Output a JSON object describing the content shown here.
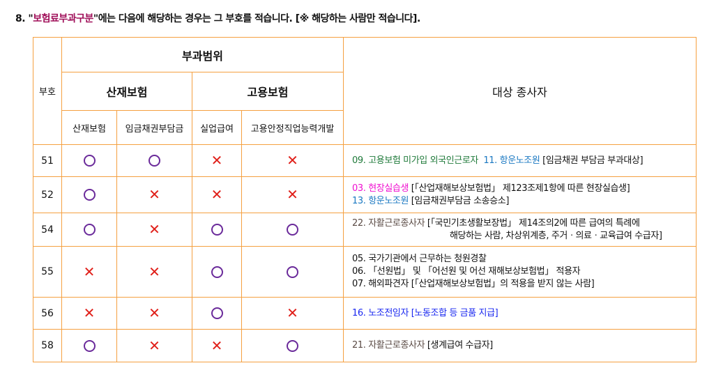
{
  "title": {
    "prefix": "8. \"",
    "highlight": "보험료부과구분",
    "suffix": "\"에는 다음에 해당하는 경우는 그 부호를 적습니다. [※ 해당하는 사람만 적습니다]."
  },
  "headers": {
    "code": "부호",
    "scope": "부과범위",
    "industrial": "산재보험",
    "employment": "고용보험",
    "target": "대상 종사자",
    "sub": [
      "산재보험",
      "임금채권부담금",
      "실업급여",
      "고용안정직업능력개발"
    ]
  },
  "colors": {
    "border": "#f5a040",
    "circle": "#6a2a9a",
    "cross": "#e0201a"
  },
  "rows": [
    {
      "code": "51",
      "marks": [
        "O",
        "O",
        "X",
        "X"
      ],
      "lines": [
        [
          {
            "t": "09. 고용보험 미가입 외국인근로자  ",
            "c": "#1f7a3a"
          },
          {
            "t": "11. 항운노조원 ",
            "c": "#1a78c2"
          },
          {
            "t": "[임금채권 부담금 부과대상]",
            "c": "#111"
          }
        ]
      ]
    },
    {
      "code": "52",
      "marks": [
        "O",
        "X",
        "X",
        "X"
      ],
      "lines": [
        [
          {
            "t": "03. 현장실습생 ",
            "c": "#f010d0"
          },
          {
            "t": "[「산업재해보상보험법」 제123조제1항에 따른 현장실습생]",
            "c": "#111"
          }
        ],
        [
          {
            "t": "13. 항운노조원 ",
            "c": "#1a78c2"
          },
          {
            "t": "[임금채권부담금 소송승소]",
            "c": "#111"
          }
        ]
      ]
    },
    {
      "code": "54",
      "marks": [
        "O",
        "X",
        "O",
        "O"
      ],
      "lines": [
        [
          {
            "t": "22. 자활근로종사자 ",
            "c": "#5a4a44"
          },
          {
            "t": "[「국민기초생활보장법」 제14조의2에 따른 급여의 특례에",
            "c": "#111"
          }
        ],
        [
          {
            "t": "해당하는 사람, 차상위계층, 주거ㆍ의료ㆍ교육급여 수급자]",
            "c": "#111",
            "indent": true
          }
        ]
      ]
    },
    {
      "code": "55",
      "marks": [
        "X",
        "X",
        "O",
        "O"
      ],
      "lines": [
        [
          {
            "t": "05. 국가기관에서 근무하는 청원경찰",
            "c": "#111"
          }
        ],
        [
          {
            "t": "06. 「선원법」 및 「어선원 및 어선 재해보상보험법」 적용자",
            "c": "#111"
          }
        ],
        [
          {
            "t": "07. 해외파견자 [「산업재해보상보험법」의 적용을 받지 않는 사람]",
            "c": "#111"
          }
        ]
      ]
    },
    {
      "code": "56",
      "marks": [
        "X",
        "X",
        "O",
        "X"
      ],
      "lines": [
        [
          {
            "t": "16. 노조전임자 [노동조합 등 금품 지급]",
            "c": "#1a28f0"
          }
        ]
      ]
    },
    {
      "code": "58",
      "marks": [
        "O",
        "X",
        "X",
        "O"
      ],
      "lines": [
        [
          {
            "t": "21. 자활근로종사자 ",
            "c": "#5a4a44"
          },
          {
            "t": "[생계급여 수급자]",
            "c": "#111"
          }
        ]
      ]
    }
  ]
}
